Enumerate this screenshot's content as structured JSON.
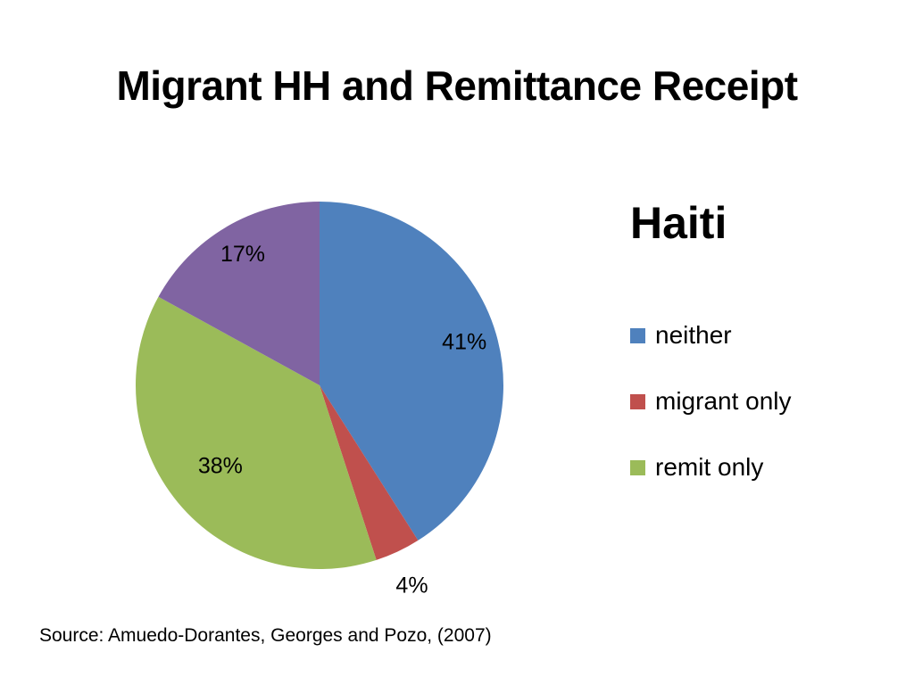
{
  "slide": {
    "title": "Migrant HH and Remittance Receipt",
    "source": "Source:  Amuedo-Dorantes, Georges and Pozo, (2007)"
  },
  "chart_data": {
    "type": "pie",
    "title": "Haiti",
    "legend_placement": "right",
    "slices": [
      {
        "name": "neither",
        "value": 41,
        "label": "41%",
        "color": "#4F81BD",
        "in_legend": true
      },
      {
        "name": "migrant only",
        "value": 4,
        "label": "4%",
        "color": "#C0504D",
        "in_legend": true
      },
      {
        "name": "remit only",
        "value": 38,
        "label": "38%",
        "color": "#9BBB59",
        "in_legend": true
      },
      {
        "name": "",
        "value": 17,
        "label": "17%",
        "color": "#8064A2",
        "in_legend": false
      }
    ]
  }
}
